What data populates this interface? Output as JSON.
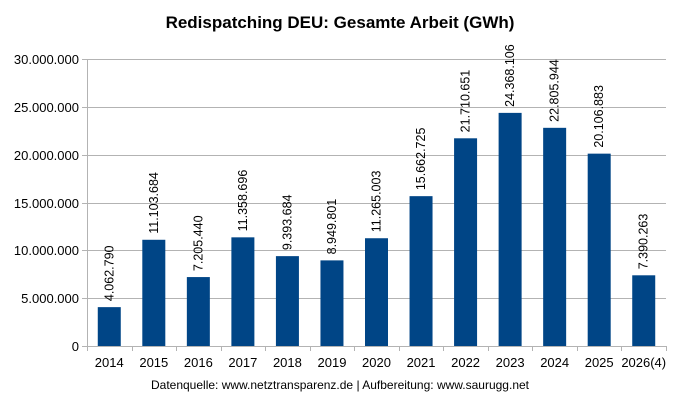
{
  "chart_data": {
    "type": "bar",
    "title": "Redispatching DEU: Gesamte Arbeit (GWh)",
    "xlabel": "",
    "ylabel": "",
    "categories": [
      "2014",
      "2015",
      "2016",
      "2017",
      "2018",
      "2019",
      "2020",
      "2021",
      "2022",
      "2023",
      "2024",
      "2025",
      "2026(4)"
    ],
    "values": [
      4062790,
      11103684,
      7205440,
      11358696,
      9393684,
      8949801,
      11265003,
      15662725,
      21710651,
      24368106,
      22805944,
      20106883,
      7390263
    ],
    "value_labels": [
      "4.062.790",
      "11.103.684",
      "7.205.440",
      "11.358.696",
      "9.393.684",
      "8.949.801",
      "11.265.003",
      "15.662.725",
      "21.710.651",
      "24.368.106",
      "22.805.944",
      "20.106.883",
      "7.390.263"
    ],
    "ylim": [
      0,
      30000000
    ],
    "yticks": [
      0,
      5000000,
      10000000,
      15000000,
      20000000,
      25000000,
      30000000
    ],
    "ytick_labels": [
      "0",
      "5.000.000",
      "10.000.000",
      "15.000.000",
      "20.000.000",
      "25.000.000",
      "30.000.000"
    ],
    "grid": true,
    "legend": "none",
    "bar_color": "#004586",
    "source_note": "Datenquelle: www.netztransparenz.de  | Aufbereitung: www.saurugg.net"
  }
}
